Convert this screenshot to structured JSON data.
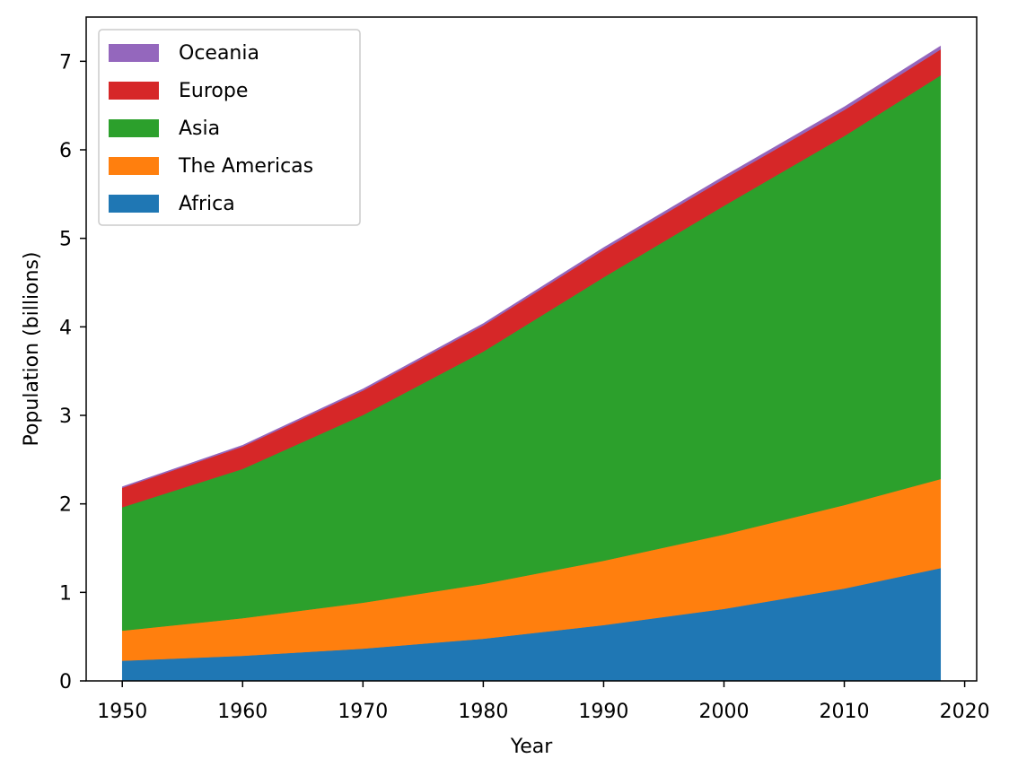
{
  "chart_data": {
    "type": "area",
    "stacked": true,
    "title": "",
    "xlabel": "Year",
    "ylabel": "Population (billions)",
    "xlim": [
      1947,
      2021
    ],
    "ylim": [
      0,
      7.5
    ],
    "x": [
      1950,
      1960,
      1970,
      1980,
      1990,
      2000,
      2010,
      2018
    ],
    "xticks": [
      1950,
      1960,
      1970,
      1980,
      1990,
      2000,
      2010,
      2020
    ],
    "yticks": [
      0,
      1,
      2,
      3,
      4,
      5,
      6,
      7
    ],
    "grid": false,
    "legend_position": "upper-left",
    "series": [
      {
        "name": "Africa",
        "color": "#1f77b4",
        "values": [
          0.228,
          0.284,
          0.365,
          0.477,
          0.631,
          0.814,
          1.044,
          1.275
        ]
      },
      {
        "name": "The Americas",
        "color": "#ff7f0e",
        "values": [
          0.34,
          0.425,
          0.519,
          0.619,
          0.727,
          0.84,
          0.943,
          1.006
        ]
      },
      {
        "name": "Asia",
        "color": "#2ca02c",
        "values": [
          1.394,
          1.686,
          2.12,
          2.625,
          3.202,
          3.714,
          4.169,
          4.56
        ]
      },
      {
        "name": "Europe",
        "color": "#d62728",
        "values": [
          0.22,
          0.253,
          0.276,
          0.295,
          0.31,
          0.303,
          0.294,
          0.293
        ]
      },
      {
        "name": "Oceania",
        "color": "#9467bd",
        "values": [
          0.012,
          0.015,
          0.019,
          0.022,
          0.026,
          0.031,
          0.036,
          0.039
        ]
      }
    ]
  }
}
